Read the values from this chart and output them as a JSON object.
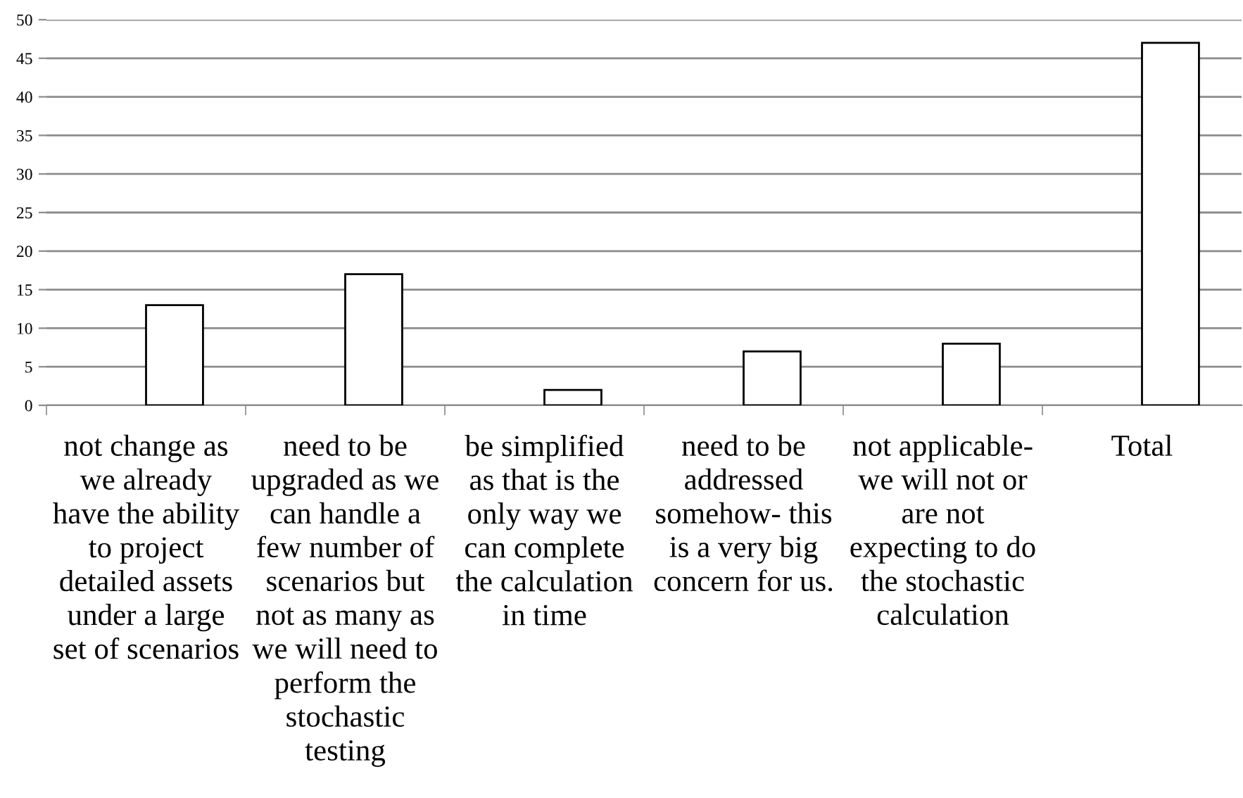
{
  "chart_data": {
    "type": "bar",
    "categories": [
      "not change as\nwe already\nhave the ability\nto project\ndetailed assets\nunder a large\nset of scenarios",
      "need to be\nupgraded as we\ncan handle a\nfew number of\nscenarios but\nnot as many as\nwe will need to\nperform the\nstochastic\ntesting",
      "be simplified\nas that is the\nonly way we\ncan complete\nthe calculation\nin time",
      "need to be\naddressed\nsomehow- this\nis a very big\nconcern for us.",
      "not applicable-\nwe will not or\nare not\nexpecting to do\nthe stochastic\ncalculation",
      "Total"
    ],
    "values": [
      13,
      17,
      2,
      7,
      8,
      47
    ],
    "color": "#ffffff",
    "ylim": [
      0,
      50
    ],
    "yticks": [
      0,
      5,
      10,
      15,
      20,
      25,
      30,
      35,
      40,
      45,
      50
    ],
    "grid": "y"
  }
}
